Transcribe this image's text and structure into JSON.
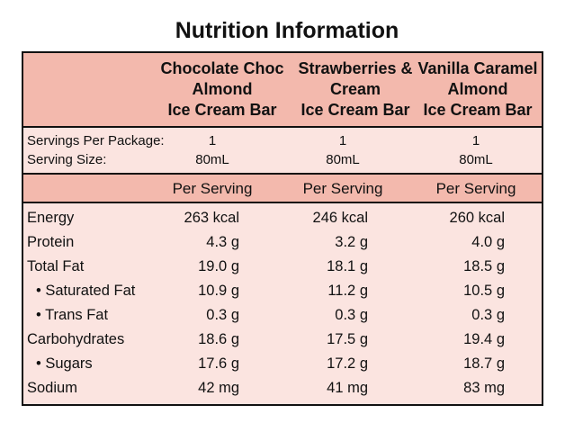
{
  "title": "Nutrition Information",
  "products": [
    {
      "lines": [
        "Chocolate Choc",
        "Almond",
        "Ice Cream Bar"
      ]
    },
    {
      "lines": [
        "Strawberries &",
        "Cream",
        "Ice Cream Bar"
      ]
    },
    {
      "lines": [
        "Vanilla Caramel",
        "Almond",
        "Ice Cream Bar"
      ]
    }
  ],
  "meta": {
    "servings_label": "Servings Per Package:",
    "size_label": "Serving Size:",
    "servings": [
      "1",
      "1",
      "1"
    ],
    "sizes": [
      "80mL",
      "80mL",
      "80mL"
    ]
  },
  "per_serving": [
    "Per Serving",
    "Per Serving",
    "Per Serving"
  ],
  "nutrients": [
    {
      "name": "Energy",
      "values": [
        "263 kcal",
        "246 kcal",
        "260 kcal"
      ]
    },
    {
      "name": "Protein",
      "values": [
        "4.3 g",
        "3.2 g",
        "4.0 g"
      ]
    },
    {
      "name": "Total Fat",
      "values": [
        "19.0 g",
        "18.1 g",
        "18.5 g"
      ]
    },
    {
      "name": "• Saturated Fat",
      "values": [
        "10.9 g",
        "11.2 g",
        "10.5 g"
      ]
    },
    {
      "name": "• Trans Fat",
      "values": [
        "0.3 g",
        "0.3 g",
        "0.3 g"
      ]
    },
    {
      "name": "Carbohydrates",
      "values": [
        "18.6 g",
        "17.5 g",
        "19.4 g"
      ]
    },
    {
      "name": "• Sugars",
      "values": [
        "17.6 g",
        "17.2 g",
        "18.7 g"
      ]
    },
    {
      "name": "Sodium",
      "values": [
        "42 mg",
        "41 mg",
        "83 mg"
      ]
    }
  ],
  "colors": {
    "header_fill": "#f3b9ad",
    "body_fill": "#fbe4e0",
    "border": "#111111"
  }
}
